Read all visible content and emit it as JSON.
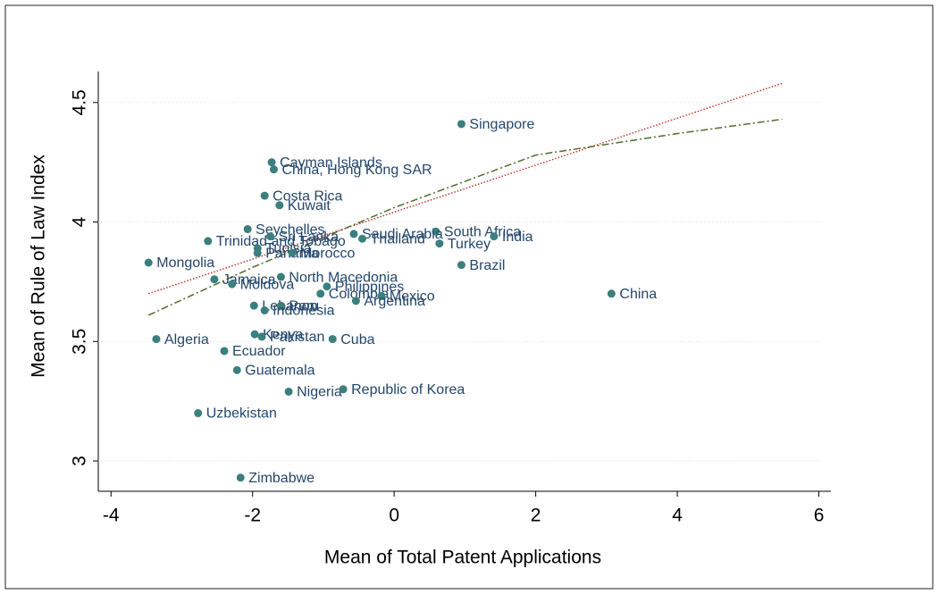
{
  "chart_data": {
    "type": "scatter",
    "x_label": "Mean of Total Patent Applications",
    "y_label": "Mean of Rule of Law Index",
    "xlim": [
      -4.18,
      6.17
    ],
    "ylim": [
      2.873,
      4.63
    ],
    "xticks": [
      -4,
      -2,
      0,
      2,
      4,
      6
    ],
    "yticks": [
      3,
      3.5,
      4,
      4.5
    ],
    "grid": true,
    "series": [
      {
        "color": "#3b7f7e",
        "label_color": "#24476b",
        "labels": [
          "Singapore",
          "Cayman Islands",
          "China, Hong Kong SAR",
          "Costa Rica",
          "Kuwait",
          "Seychelles",
          "South Africa",
          "India",
          "Saudi Arabia",
          "Trinidad and Tobago",
          "Sri Lanka",
          "Thailand",
          "Turkey",
          "Tunisia",
          "Panama",
          "Morocco",
          "Brazil",
          "Mongolia",
          "North Macedonia",
          "Jamaica",
          "Moldova",
          "Philippines",
          "Colombia",
          "Mexico",
          "China",
          "Argentina",
          "Lebanon",
          "Peru",
          "Indonesia",
          "Algeria",
          "Kenya",
          "Pakistan",
          "Cuba",
          "Ecuador",
          "Guatemala",
          "Nigeria",
          "Republic of Korea",
          "Uzbekistan",
          "Zimbabwe"
        ],
        "x": [
          0.95,
          -1.73,
          -1.7,
          -1.83,
          -1.62,
          -2.07,
          0.59,
          1.41,
          -0.57,
          -2.63,
          -1.75,
          -0.45,
          0.64,
          -1.93,
          -1.93,
          -1.44,
          0.95,
          -3.47,
          -1.6,
          -2.54,
          -2.29,
          -0.95,
          -1.04,
          -0.18,
          3.07,
          -0.54,
          -1.98,
          -1.6,
          -1.83,
          -3.36,
          -1.97,
          -1.87,
          -0.87,
          -2.4,
          -2.22,
          -1.49,
          -0.72,
          -2.77,
          -2.17
        ],
        "values": [
          4.41,
          4.25,
          4.22,
          4.11,
          4.07,
          3.97,
          3.96,
          3.94,
          3.95,
          3.92,
          3.94,
          3.93,
          3.91,
          3.89,
          3.87,
          3.87,
          3.82,
          3.83,
          3.77,
          3.76,
          3.74,
          3.73,
          3.7,
          3.69,
          3.7,
          3.67,
          3.65,
          3.65,
          3.63,
          3.51,
          3.53,
          3.52,
          3.51,
          3.46,
          3.38,
          3.29,
          3.3,
          3.2,
          2.93
        ]
      }
    ],
    "lines": [
      {
        "style": "dotted",
        "color": "#c0392b",
        "x": [
          -3.47,
          5.48
        ],
        "values": [
          3.7,
          4.58
        ]
      },
      {
        "style": "dash-dot",
        "color": "#556b2f",
        "x": [
          -3.47,
          -2,
          0,
          2,
          4,
          5.48
        ],
        "values": [
          3.61,
          3.81,
          4.06,
          4.28,
          4.37,
          4.43
        ]
      }
    ]
  }
}
